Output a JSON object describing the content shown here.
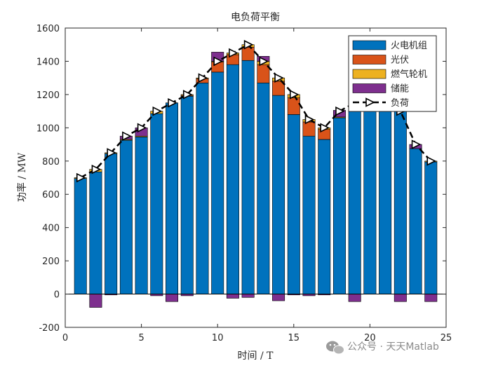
{
  "chart_data": {
    "type": "bar",
    "stacked": true,
    "title": "电负荷平衡",
    "xlabel": "时间 / T",
    "ylabel": "功率 / MW",
    "xlim": [
      0,
      25
    ],
    "ylim": [
      -200,
      1600
    ],
    "xticks": [
      0,
      5,
      10,
      15,
      20,
      25
    ],
    "yticks": [
      -200,
      0,
      200,
      400,
      600,
      800,
      1000,
      1200,
      1400,
      1600
    ],
    "legend_position": "top-right",
    "x": [
      1,
      2,
      3,
      4,
      5,
      6,
      7,
      8,
      9,
      10,
      11,
      12,
      13,
      14,
      15,
      16,
      17,
      18,
      19,
      20,
      21,
      22,
      23,
      24
    ],
    "series": [
      {
        "name": "火电机组",
        "color": "#0072BD",
        "values": [
          695,
          735,
          845,
          925,
          945,
          1085,
          1150,
          1190,
          1270,
          1335,
          1380,
          1405,
          1270,
          1195,
          1080,
          950,
          930,
          1060,
          1180,
          1130,
          1120,
          1100,
          875,
          795
        ]
      },
      {
        "name": "光伏",
        "color": "#D95319",
        "values": [
          0,
          0,
          0,
          0,
          0,
          0,
          0,
          5,
          25,
          60,
          60,
          80,
          110,
          85,
          100,
          85,
          60,
          0,
          0,
          0,
          0,
          0,
          0,
          0
        ]
      },
      {
        "name": "燃气轮机",
        "color": "#EDB120",
        "values": [
          5,
          15,
          5,
          5,
          5,
          15,
          0,
          5,
          5,
          5,
          10,
          15,
          20,
          20,
          20,
          15,
          10,
          5,
          20,
          0,
          5,
          0,
          0,
          5
        ]
      },
      {
        "name": "储能",
        "color": "#7E2F8E",
        "values": [
          0,
          -80,
          -5,
          20,
          50,
          -10,
          -45,
          -10,
          0,
          55,
          -25,
          -20,
          30,
          -40,
          -5,
          -10,
          -5,
          40,
          -45,
          30,
          20,
          -45,
          25,
          -45
        ]
      }
    ],
    "load": {
      "name": "负荷",
      "color": "#000000",
      "values": [
        700,
        750,
        850,
        950,
        1000,
        1100,
        1150,
        1200,
        1300,
        1400,
        1450,
        1500,
        1400,
        1300,
        1200,
        1050,
        1000,
        1100,
        1150,
        1150,
        1150,
        1100,
        900,
        800
      ]
    }
  },
  "watermark": {
    "text": "公众号 · 天天Matlab",
    "icon": "wechat-icon"
  }
}
